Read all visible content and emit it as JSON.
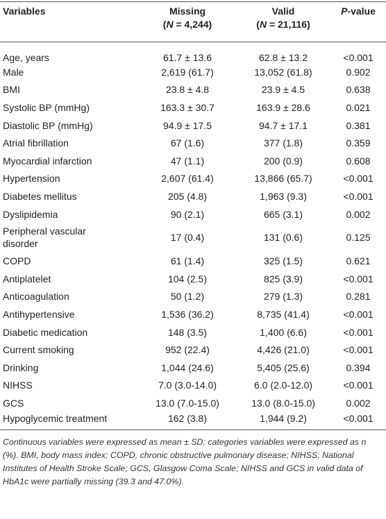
{
  "table": {
    "header": [
      {
        "parts": [
          "Variables"
        ]
      },
      {
        "parts": [
          "Missing"
        ],
        "sub": [
          "(",
          "N",
          " = 4,244)"
        ]
      },
      {
        "parts": [
          "Valid"
        ],
        "sub": [
          "(",
          "N",
          " = 21,116)"
        ]
      },
      {
        "parts": [
          "P",
          "-value"
        ]
      }
    ],
    "rows": [
      [
        "Age, years",
        "61.7 ± 13.6",
        "62.8 ± 13.2",
        "<0.001"
      ],
      [
        "Male",
        "2,619 (61.7)",
        "13,052 (61.8)",
        "0.902"
      ],
      [
        "BMI",
        "23.8 ± 4.8",
        "23.9 ± 4.5",
        "0.638"
      ],
      [
        "Systolic BP (mmHg)",
        "163.3 ± 30.7",
        "163.9 ± 28.6",
        "0.021"
      ],
      [
        "Diastolic BP (mmHg)",
        "94.9 ± 17.5",
        "94.7 ± 17.1",
        "0.381"
      ],
      [
        "Atrial fibrillation",
        "67 (1.6)",
        "377 (1.8)",
        "0.359"
      ],
      [
        "Myocardial infarction",
        "47 (1.1)",
        "200 (0.9)",
        "0.608"
      ],
      [
        "Hypertension",
        "2,607 (61.4)",
        "13,866 (65.7)",
        "<0.001"
      ],
      [
        "Diabetes mellitus",
        "205 (4.8)",
        "1,963 (9.3)",
        "<0.001"
      ],
      [
        "Dyslipidemia",
        "90 (2.1)",
        "665 (3.1)",
        "0.002"
      ],
      [
        "Peripheral vascular disorder",
        "17 (0.4)",
        "131 (0.6)",
        "0.125"
      ],
      [
        "COPD",
        "61 (1.4)",
        "325 (1.5)",
        "0.621"
      ],
      [
        "Antiplatelet",
        "104 (2.5)",
        "825 (3.9)",
        "<0.001"
      ],
      [
        "Anticoagulation",
        "50 (1.2)",
        "279 (1.3)",
        "0.281"
      ],
      [
        "Antihypertensive",
        "1,536 (36.2)",
        "8,735 (41.4)",
        "<0.001"
      ],
      [
        "Diabetic medication",
        "148 (3.5)",
        "1,400 (6.6)",
        "<0.001"
      ],
      [
        "Current smoking",
        "952 (22.4)",
        "4,426 (21.0)",
        "<0.001"
      ],
      [
        "Drinking",
        "1,044 (24.6)",
        "5,405 (25.6)",
        "0.394"
      ],
      [
        "NIHSS",
        "7.0 (3.0-14.0)",
        "6.0 (2.0-12.0)",
        "<0.001"
      ],
      [
        "GCS",
        "13.0 (7.0-15.0)",
        "13.0 (8.0-15.0)",
        "0.002"
      ],
      [
        "Hypoglycemic treatment",
        "162 (3.8)",
        "1,944 (9.2)",
        "<0.001"
      ]
    ],
    "footnote": "Continuous variables were expressed as mean ± SD; categories variables were expressed as n (%). BMI, body mass index; COPD, chronic obstructive pulmonary disease; NIHSS, National Institutes of Health Stroke Scale; GCS, Glasgow Coma Scale; NIHSS and GCS in valid data of HbA1c were partially missing (39.3 and 47.0%)."
  }
}
